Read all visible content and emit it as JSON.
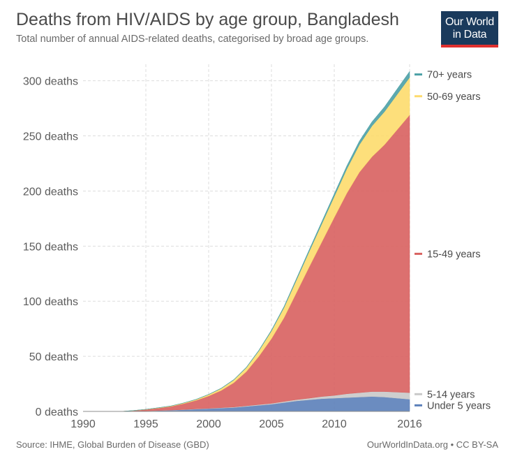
{
  "header": {
    "title": "Deaths from HIV/AIDS by age group, Bangladesh",
    "subtitle": "Total number of annual AIDS-related deaths, categorised by broad age groups."
  },
  "logo": {
    "line1": "Our World",
    "line2": "in Data"
  },
  "footer": {
    "source": "Source: IHME, Global Burden of Disease (GBD)",
    "credit": "OurWorldInData.org • CC BY-SA"
  },
  "chart_data": {
    "type": "area",
    "stacked": true,
    "x": [
      1990,
      1991,
      1992,
      1993,
      1994,
      1995,
      1996,
      1997,
      1998,
      1999,
      2000,
      2001,
      2002,
      2003,
      2004,
      2005,
      2006,
      2007,
      2008,
      2009,
      2010,
      2011,
      2012,
      2013,
      2014,
      2015,
      2016
    ],
    "x_ticks": [
      1990,
      1995,
      2000,
      2005,
      2010,
      2016
    ],
    "y_ticks": [
      0,
      50,
      100,
      150,
      200,
      250,
      300
    ],
    "y_tick_labels": [
      "0 deaths",
      "50 deaths",
      "100 deaths",
      "150 deaths",
      "200 deaths",
      "250 deaths",
      "300 deaths"
    ],
    "ylim": [
      0,
      315
    ],
    "xlim": [
      1990,
      2016
    ],
    "grid": true,
    "legend_position": "right",
    "series": [
      {
        "name": "Under 5 years",
        "color": "#5b7fb9",
        "values": [
          0,
          0,
          0,
          0,
          0.2,
          0.4,
          0.7,
          1,
          1.5,
          2,
          2.5,
          3,
          3.5,
          4.5,
          5.5,
          6.5,
          8,
          9.5,
          10.5,
          11.5,
          12,
          12.5,
          13,
          13.5,
          13,
          12,
          11
        ]
      },
      {
        "name": "5-14 years",
        "color": "#c9c9c9",
        "values": [
          0,
          0,
          0,
          0,
          0,
          0.1,
          0.1,
          0.2,
          0.2,
          0.3,
          0.3,
          0.4,
          0.5,
          0.6,
          0.7,
          0.8,
          1,
          1.2,
          1.5,
          2,
          2.5,
          3.5,
          4,
          4.5,
          5,
          5.5,
          6
        ]
      },
      {
        "name": "15-49 years",
        "color": "#d8615f",
        "values": [
          0,
          0,
          0,
          0,
          0.5,
          1.2,
          2.2,
          3.3,
          5.3,
          7.7,
          11.2,
          15.6,
          22,
          31,
          43.8,
          58.7,
          76,
          97.3,
          119,
          140,
          161.5,
          182,
          200,
          213,
          224,
          238,
          252
        ]
      },
      {
        "name": "50-69 years",
        "color": "#fddb6d",
        "values": [
          0,
          0,
          0,
          0,
          0.1,
          0.2,
          0.3,
          0.4,
          0.6,
          0.8,
          1.3,
          1.8,
          2.5,
          3.5,
          5,
          7,
          9.2,
          11.5,
          14,
          16.5,
          19,
          22,
          25,
          28,
          30,
          32,
          34
        ]
      },
      {
        "name": "70+ years",
        "color": "#4ba0a6",
        "values": [
          0,
          0,
          0,
          0,
          0,
          0,
          0.1,
          0.1,
          0.1,
          0.2,
          0.2,
          0.3,
          0.4,
          0.5,
          0.6,
          0.8,
          1,
          1.3,
          1.6,
          2,
          2.4,
          2.8,
          3.3,
          3.8,
          4.4,
          5,
          5.5
        ]
      }
    ]
  }
}
